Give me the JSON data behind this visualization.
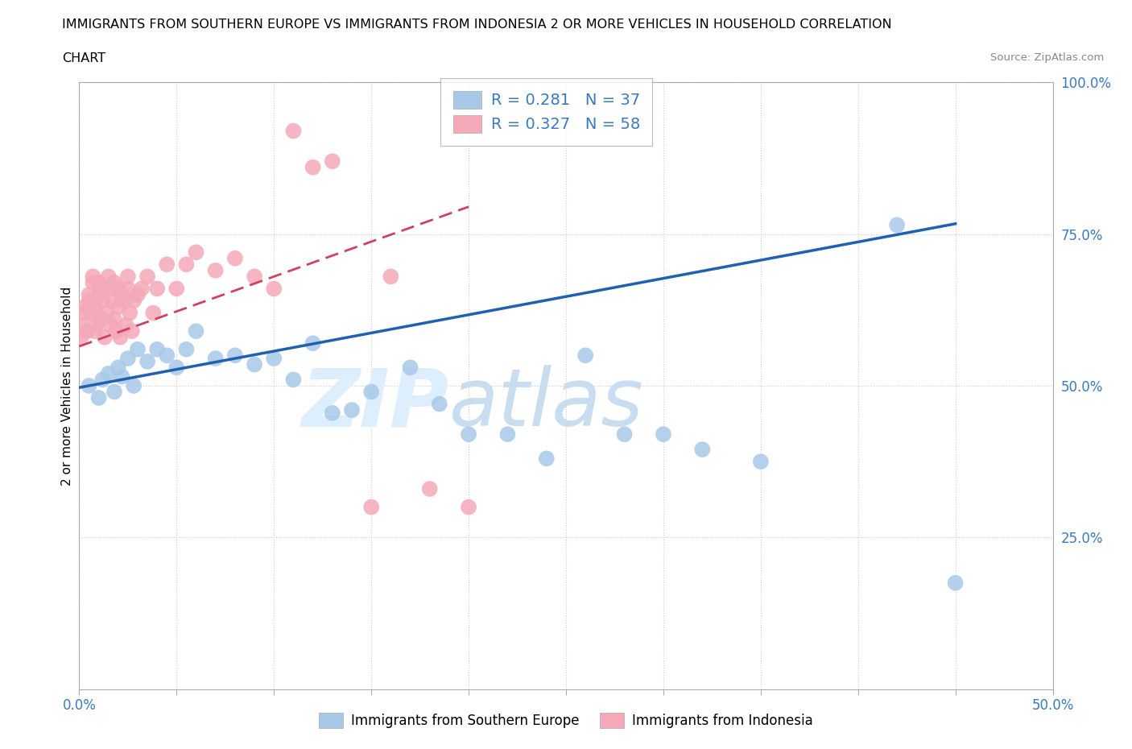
{
  "title_line1": "IMMIGRANTS FROM SOUTHERN EUROPE VS IMMIGRANTS FROM INDONESIA 2 OR MORE VEHICLES IN HOUSEHOLD CORRELATION",
  "title_line2": "CHART",
  "source": "Source: ZipAtlas.com",
  "ylabel": "2 or more Vehicles in Household",
  "xlim": [
    0,
    0.5
  ],
  "ylim": [
    0,
    1.0
  ],
  "blue_R": 0.281,
  "blue_N": 37,
  "pink_R": 0.327,
  "pink_N": 58,
  "blue_color": "#a8c8e8",
  "pink_color": "#f4a8b8",
  "blue_line_color": "#2060b0",
  "pink_line_color": "#d04060",
  "legend_label_blue": "Immigrants from Southern Europe",
  "legend_label_pink": "Immigrants from Indonesia",
  "blue_x": [
    0.005,
    0.01,
    0.012,
    0.015,
    0.018,
    0.02,
    0.022,
    0.025,
    0.028,
    0.03,
    0.035,
    0.04,
    0.045,
    0.05,
    0.055,
    0.06,
    0.07,
    0.08,
    0.09,
    0.1,
    0.11,
    0.12,
    0.13,
    0.14,
    0.15,
    0.17,
    0.185,
    0.2,
    0.22,
    0.24,
    0.26,
    0.28,
    0.3,
    0.32,
    0.35,
    0.42,
    0.45
  ],
  "blue_y": [
    0.5,
    0.48,
    0.51,
    0.52,
    0.49,
    0.53,
    0.515,
    0.545,
    0.5,
    0.56,
    0.54,
    0.56,
    0.55,
    0.53,
    0.56,
    0.59,
    0.545,
    0.55,
    0.535,
    0.545,
    0.51,
    0.57,
    0.455,
    0.46,
    0.49,
    0.53,
    0.47,
    0.42,
    0.42,
    0.38,
    0.55,
    0.42,
    0.42,
    0.395,
    0.375,
    0.765,
    0.175
  ],
  "pink_x": [
    0.001,
    0.002,
    0.003,
    0.003,
    0.004,
    0.005,
    0.005,
    0.006,
    0.007,
    0.007,
    0.008,
    0.008,
    0.009,
    0.01,
    0.01,
    0.011,
    0.012,
    0.012,
    0.013,
    0.014,
    0.015,
    0.015,
    0.016,
    0.017,
    0.018,
    0.018,
    0.019,
    0.02,
    0.02,
    0.021,
    0.022,
    0.023,
    0.024,
    0.025,
    0.025,
    0.026,
    0.027,
    0.028,
    0.03,
    0.032,
    0.035,
    0.038,
    0.04,
    0.045,
    0.05,
    0.055,
    0.06,
    0.07,
    0.08,
    0.09,
    0.1,
    0.11,
    0.12,
    0.13,
    0.15,
    0.16,
    0.18,
    0.2
  ],
  "pink_y": [
    0.58,
    0.6,
    0.62,
    0.63,
    0.59,
    0.64,
    0.65,
    0.62,
    0.67,
    0.68,
    0.59,
    0.63,
    0.6,
    0.65,
    0.67,
    0.61,
    0.64,
    0.66,
    0.58,
    0.62,
    0.66,
    0.68,
    0.6,
    0.64,
    0.61,
    0.67,
    0.59,
    0.63,
    0.66,
    0.58,
    0.65,
    0.64,
    0.6,
    0.66,
    0.68,
    0.62,
    0.59,
    0.64,
    0.65,
    0.66,
    0.68,
    0.62,
    0.66,
    0.7,
    0.66,
    0.7,
    0.72,
    0.69,
    0.71,
    0.68,
    0.66,
    0.92,
    0.86,
    0.87,
    0.3,
    0.68,
    0.33,
    0.3
  ]
}
